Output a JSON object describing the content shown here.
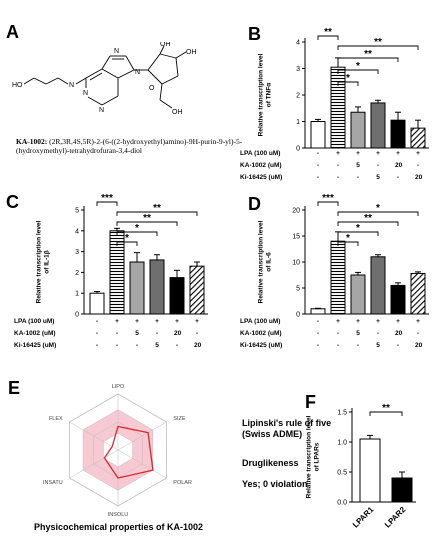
{
  "panel_letters": {
    "a": "A",
    "b": "B",
    "c": "C",
    "d": "D",
    "e": "E",
    "f": "F"
  },
  "molecule": {
    "atoms": [
      "HO",
      "N",
      "N",
      "N",
      "N",
      "N",
      "O",
      "OH",
      "OH",
      "OH"
    ],
    "name_label": "KA-1002:",
    "name_text": "(2R,3R,4S,5R)-2-(6-((2-hydroxyethyl)amino)-9H-purin-9-yl)-5-(hydroxymethyl)-tetrahydrofuran-3,4-diol"
  },
  "treatment_table": {
    "rows": [
      {
        "label": "LPA (100 uM)",
        "values": [
          "-",
          "+",
          "+",
          "+",
          "+",
          "+"
        ]
      },
      {
        "label": "KA-1002 (uM)",
        "values": [
          "-",
          "-",
          "5",
          "-",
          "20",
          "-"
        ]
      },
      {
        "label": "Ki-16425 (uM)",
        "values": [
          "-",
          "-",
          "-",
          "5",
          "-",
          "20"
        ]
      }
    ]
  },
  "chart_data": [
    {
      "panel": "B",
      "type": "bar",
      "ylabel": "Relative transcription level of TNFα",
      "ylim": [
        0,
        4
      ],
      "yticks": [
        "0",
        "1",
        "2",
        "3",
        "4"
      ],
      "values": [
        1.0,
        3.05,
        1.35,
        1.7,
        1.05,
        0.75
      ],
      "errors": [
        0.08,
        0.35,
        0.2,
        0.1,
        0.3,
        0.3
      ],
      "patterns": [
        "white",
        "hatch",
        "gray",
        "dgray",
        "black",
        "diag"
      ],
      "significance": [
        {
          "from": 1,
          "to": 2,
          "label": "*"
        },
        {
          "from": 1,
          "to": 3,
          "label": "*"
        },
        {
          "from": 1,
          "to": 4,
          "label": "**"
        },
        {
          "from": 1,
          "to": 5,
          "label": "**"
        },
        {
          "from": 0,
          "to": 1,
          "label": "**"
        }
      ]
    },
    {
      "panel": "C",
      "type": "bar",
      "ylabel": "Relative transcription level of IL-1β",
      "ylim": [
        0,
        5
      ],
      "yticks": [
        "0",
        "1",
        "2",
        "3",
        "4",
        "5"
      ],
      "values": [
        1.0,
        4.0,
        2.5,
        2.6,
        1.75,
        2.3
      ],
      "errors": [
        0.08,
        0.12,
        0.45,
        0.25,
        0.35,
        0.2
      ],
      "patterns": [
        "white",
        "hatch",
        "gray",
        "dgray",
        "black",
        "diag"
      ],
      "significance": [
        {
          "from": 1,
          "to": 2,
          "label": "*"
        },
        {
          "from": 1,
          "to": 3,
          "label": "*"
        },
        {
          "from": 1,
          "to": 4,
          "label": "**"
        },
        {
          "from": 1,
          "to": 5,
          "label": "**"
        },
        {
          "from": 0,
          "to": 1,
          "label": "***"
        }
      ]
    },
    {
      "panel": "D",
      "type": "bar",
      "ylabel": "Relative transcription level of IL-6",
      "ylim": [
        0,
        20
      ],
      "yticks": [
        "0",
        "5",
        "10",
        "15",
        "20"
      ],
      "values": [
        1.0,
        14.0,
        7.5,
        11.0,
        5.5,
        7.8
      ],
      "errors": [
        0.1,
        1.8,
        0.5,
        0.4,
        0.5,
        0.3
      ],
      "patterns": [
        "white",
        "hatch",
        "gray",
        "dgray",
        "black",
        "diag"
      ],
      "significance": [
        {
          "from": 1,
          "to": 2,
          "label": "*"
        },
        {
          "from": 1,
          "to": 3,
          "label": "*"
        },
        {
          "from": 1,
          "to": 4,
          "label": "**"
        },
        {
          "from": 1,
          "to": 5,
          "label": "*"
        },
        {
          "from": 0,
          "to": 1,
          "label": "***"
        }
      ]
    },
    {
      "panel": "E",
      "type": "radar",
      "axes": [
        "LIPO",
        "SIZE",
        "POLAR",
        "INSOLU",
        "INSATU",
        "FLEX"
      ],
      "values": [
        0.42,
        0.62,
        0.72,
        0.5,
        0.28,
        0.12
      ]
    },
    {
      "panel": "F",
      "type": "bar",
      "ylabel": "Relative transcription level of LPARs",
      "categories": [
        "LPAR1",
        "LPAR2"
      ],
      "ylim": [
        0,
        1.5
      ],
      "yticks": [
        "0.0",
        "0.5",
        "1.0",
        "1.5"
      ],
      "values": [
        1.05,
        0.4
      ],
      "errors": [
        0.06,
        0.1
      ],
      "patterns": [
        "white",
        "black"
      ],
      "significance": [
        {
          "from": 0,
          "to": 1,
          "label": "**"
        }
      ]
    }
  ],
  "swiss_adme": {
    "rule_title": "Lipinski's rule of five (Swiss ADME)",
    "druglike_label": "Druglikeness",
    "result": "Yes; 0 violation",
    "caption": "Physicochemical properties of KA-1002"
  }
}
